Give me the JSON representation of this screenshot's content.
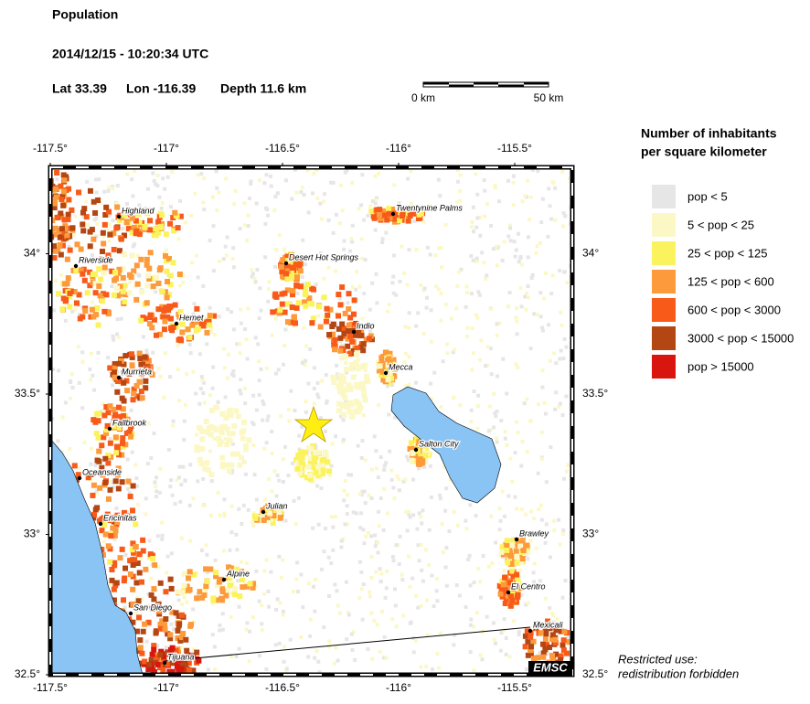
{
  "header": {
    "title": "Population",
    "datetime": "2014/12/15 - 10:20:34 UTC",
    "lat": "Lat 33.39",
    "lon": "Lon -116.39",
    "depth": "Depth  11.6 km"
  },
  "scale_bar": {
    "start": "0 km",
    "end": "50 km"
  },
  "map": {
    "lonticks": [
      {
        "value": -117.5,
        "label": "-117.5°"
      },
      {
        "value": -117,
        "label": "-117°"
      },
      {
        "value": -116.5,
        "label": "-116.5°"
      },
      {
        "value": -116,
        "label": "-116°"
      },
      {
        "value": -115.5,
        "label": "-115.5°"
      }
    ],
    "latticks": [
      {
        "value": 32.5,
        "label": "32.5°"
      },
      {
        "value": 33,
        "label": "33°"
      },
      {
        "value": 33.5,
        "label": "33.5°"
      },
      {
        "value": 34,
        "label": "34°"
      }
    ],
    "cities": [
      "Highland",
      "Twentynine Palms",
      "Riverside",
      "Desert Hot Springs",
      "Hemet",
      "Indio",
      "Murrieta",
      "Mecca",
      "Fallbrook",
      "Salton City",
      "Oceanside",
      "Julian",
      "Encinitas",
      "Brawley",
      "Alpine",
      "El Centro",
      "San Diego",
      "Mexicali",
      "Tijuana"
    ],
    "agency": "EMSC"
  },
  "legend": {
    "title": [
      "Number of inhabitants",
      "per square kilometer"
    ],
    "items": [
      {
        "label": "pop < 5",
        "color": "#e6e6e6"
      },
      {
        "label": "5 < pop < 25",
        "color": "#fcf8c6"
      },
      {
        "label": "25 < pop < 125",
        "color": "#fbf35d"
      },
      {
        "label": "125 < pop < 600",
        "color": "#fd9a3b"
      },
      {
        "label": "600 < pop < 3000",
        "color": "#f85a1a"
      },
      {
        "label": "3000 < pop < 15000",
        "color": "#b44613"
      },
      {
        "label": "pop > 15000",
        "color": "#d8150f"
      }
    ]
  },
  "notice": [
    "Restricted use:",
    "redistribution forbidden"
  ]
}
